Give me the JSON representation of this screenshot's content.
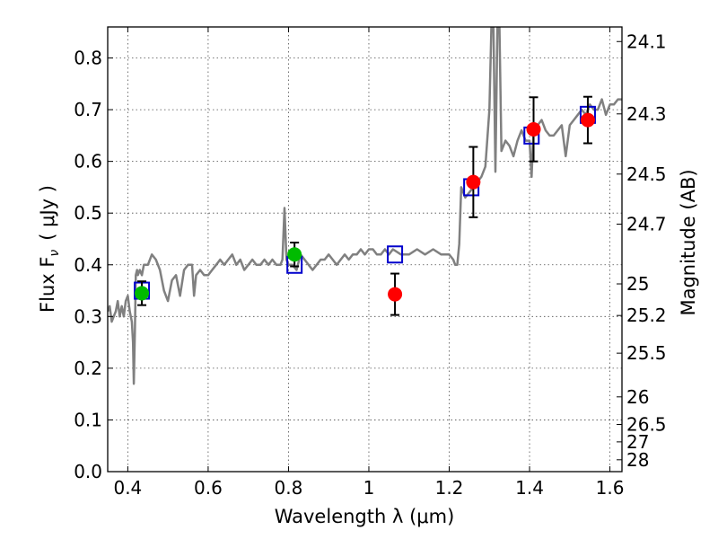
{
  "chart_data": {
    "type": "scatter",
    "title": "",
    "xlabel": "Wavelength  λ (μm)",
    "ylabel_prefix": "Flux  F",
    "ylabel_sub": "ν",
    "ylabel_unit": "( μJy )",
    "y2label": "Magnitude (AB)",
    "xlim": [
      0.35,
      1.63
    ],
    "ylim": [
      0.0,
      0.86
    ],
    "grid": true,
    "x_ticks": [
      {
        "value": 0.4,
        "label": "0.4"
      },
      {
        "value": 0.6,
        "label": "0.6"
      },
      {
        "value": 0.8,
        "label": "0.8"
      },
      {
        "value": 1.0,
        "label": "1"
      },
      {
        "value": 1.2,
        "label": "1.2"
      },
      {
        "value": 1.4,
        "label": "1.4"
      },
      {
        "value": 1.6,
        "label": "1.6"
      }
    ],
    "y_ticks": [
      {
        "value": 0.0,
        "label": "0.0"
      },
      {
        "value": 0.1,
        "label": "0.1"
      },
      {
        "value": 0.2,
        "label": "0.2"
      },
      {
        "value": 0.3,
        "label": "0.3"
      },
      {
        "value": 0.4,
        "label": "0.4"
      },
      {
        "value": 0.5,
        "label": "0.5"
      },
      {
        "value": 0.6,
        "label": "0.6"
      },
      {
        "value": 0.7,
        "label": "0.7"
      },
      {
        "value": 0.8,
        "label": "0.8"
      }
    ],
    "y2_ticks": [
      {
        "mag": 24.1,
        "label": "24.1"
      },
      {
        "mag": 24.3,
        "label": "24.3"
      },
      {
        "mag": 24.5,
        "label": "24.5"
      },
      {
        "mag": 24.7,
        "label": "24.7"
      },
      {
        "mag": 25.0,
        "label": "25"
      },
      {
        "mag": 25.2,
        "label": "25.2"
      },
      {
        "mag": 25.5,
        "label": "25.5"
      },
      {
        "mag": 26.0,
        "label": "26"
      },
      {
        "mag": 26.5,
        "label": "26.5"
      },
      {
        "mag": 27.0,
        "label": "27"
      },
      {
        "mag": 28.0,
        "label": "28"
      }
    ],
    "colors": {
      "spectrum": "#808080",
      "model_box": "#0000cc",
      "observed_red": "#ff0000",
      "observed_green": "#00bb00",
      "errorbar": "#000000"
    },
    "series": [
      {
        "kind": "line",
        "color": "#808080",
        "x": [
          0.35,
          0.355,
          0.36,
          0.365,
          0.37,
          0.375,
          0.38,
          0.385,
          0.39,
          0.395,
          0.4,
          0.405,
          0.41,
          0.413,
          0.415,
          0.418,
          0.42,
          0.423,
          0.425,
          0.43,
          0.435,
          0.44,
          0.45,
          0.46,
          0.47,
          0.48,
          0.49,
          0.5,
          0.51,
          0.52,
          0.53,
          0.54,
          0.55,
          0.56,
          0.565,
          0.57,
          0.58,
          0.59,
          0.6,
          0.61,
          0.62,
          0.63,
          0.64,
          0.65,
          0.66,
          0.67,
          0.68,
          0.69,
          0.7,
          0.71,
          0.72,
          0.73,
          0.74,
          0.75,
          0.76,
          0.77,
          0.78,
          0.785,
          0.79,
          0.795,
          0.8,
          0.81,
          0.82,
          0.83,
          0.84,
          0.85,
          0.86,
          0.87,
          0.88,
          0.89,
          0.9,
          0.91,
          0.92,
          0.93,
          0.94,
          0.95,
          0.96,
          0.97,
          0.98,
          0.99,
          1.0,
          1.01,
          1.02,
          1.03,
          1.04,
          1.05,
          1.06,
          1.08,
          1.1,
          1.12,
          1.14,
          1.16,
          1.18,
          1.2,
          1.21,
          1.215,
          1.22,
          1.225,
          1.23,
          1.24,
          1.25,
          1.26,
          1.27,
          1.28,
          1.29,
          1.3,
          1.305,
          1.31,
          1.315,
          1.32,
          1.325,
          1.33,
          1.34,
          1.35,
          1.36,
          1.37,
          1.38,
          1.39,
          1.4,
          1.405,
          1.41,
          1.42,
          1.43,
          1.44,
          1.45,
          1.46,
          1.47,
          1.48,
          1.49,
          1.5,
          1.51,
          1.52,
          1.53,
          1.54,
          1.55,
          1.56,
          1.57,
          1.58,
          1.59,
          1.6,
          1.61,
          1.62,
          1.63
        ],
        "y": [
          0.31,
          0.32,
          0.29,
          0.3,
          0.31,
          0.33,
          0.3,
          0.32,
          0.3,
          0.33,
          0.34,
          0.31,
          0.29,
          0.25,
          0.17,
          0.28,
          0.38,
          0.39,
          0.38,
          0.39,
          0.38,
          0.4,
          0.4,
          0.42,
          0.41,
          0.39,
          0.35,
          0.33,
          0.37,
          0.38,
          0.34,
          0.39,
          0.4,
          0.4,
          0.34,
          0.38,
          0.39,
          0.38,
          0.38,
          0.39,
          0.4,
          0.41,
          0.4,
          0.41,
          0.42,
          0.4,
          0.41,
          0.39,
          0.4,
          0.41,
          0.4,
          0.4,
          0.41,
          0.4,
          0.41,
          0.4,
          0.4,
          0.41,
          0.51,
          0.41,
          0.4,
          0.4,
          0.39,
          0.42,
          0.41,
          0.4,
          0.39,
          0.4,
          0.41,
          0.41,
          0.42,
          0.41,
          0.4,
          0.41,
          0.42,
          0.41,
          0.42,
          0.42,
          0.43,
          0.42,
          0.43,
          0.43,
          0.42,
          0.42,
          0.43,
          0.42,
          0.43,
          0.42,
          0.42,
          0.43,
          0.42,
          0.43,
          0.42,
          0.42,
          0.41,
          0.4,
          0.4,
          0.44,
          0.55,
          0.53,
          0.54,
          0.55,
          0.56,
          0.57,
          0.59,
          0.7,
          0.86,
          0.86,
          0.58,
          0.86,
          0.86,
          0.62,
          0.64,
          0.63,
          0.61,
          0.64,
          0.66,
          0.64,
          0.64,
          0.57,
          0.66,
          0.67,
          0.68,
          0.66,
          0.65,
          0.65,
          0.66,
          0.67,
          0.61,
          0.67,
          0.68,
          0.69,
          0.7,
          0.69,
          0.71,
          0.7,
          0.7,
          0.72,
          0.69,
          0.71,
          0.71,
          0.72,
          0.72
        ]
      },
      {
        "kind": "model_boxes",
        "x": [
          0.435,
          0.815,
          1.065,
          1.255,
          1.405,
          1.545
        ],
        "y": [
          0.35,
          0.4,
          0.42,
          0.55,
          0.65,
          0.69
        ]
      },
      {
        "kind": "observed",
        "points": [
          {
            "x": 0.435,
            "y": 0.345,
            "yerr": 0.023,
            "color": "green"
          },
          {
            "x": 0.815,
            "y": 0.42,
            "yerr": 0.023,
            "color": "green"
          },
          {
            "x": 1.065,
            "y": 0.343,
            "yerr": 0.04,
            "color": "red"
          },
          {
            "x": 1.26,
            "y": 0.56,
            "yerr": 0.068,
            "color": "red"
          },
          {
            "x": 1.41,
            "y": 0.662,
            "yerr": 0.062,
            "color": "red"
          },
          {
            "x": 1.545,
            "y": 0.68,
            "yerr": 0.045,
            "color": "red"
          }
        ]
      }
    ]
  }
}
